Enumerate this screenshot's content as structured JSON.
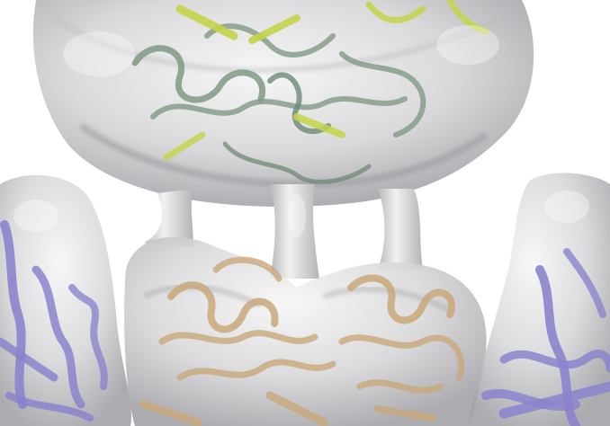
{
  "image": {
    "colors": {
      "background": "#ffffff",
      "density_map": "#d9d9da",
      "density_shadow": "#9c9ca0",
      "density_highlight": "#f4f4f5",
      "green_chain": "#7f9a85",
      "yellow_chain": "#c4d34a",
      "tan_chain": "#c9a87a",
      "blue_chain": "#8a84cc"
    }
  }
}
